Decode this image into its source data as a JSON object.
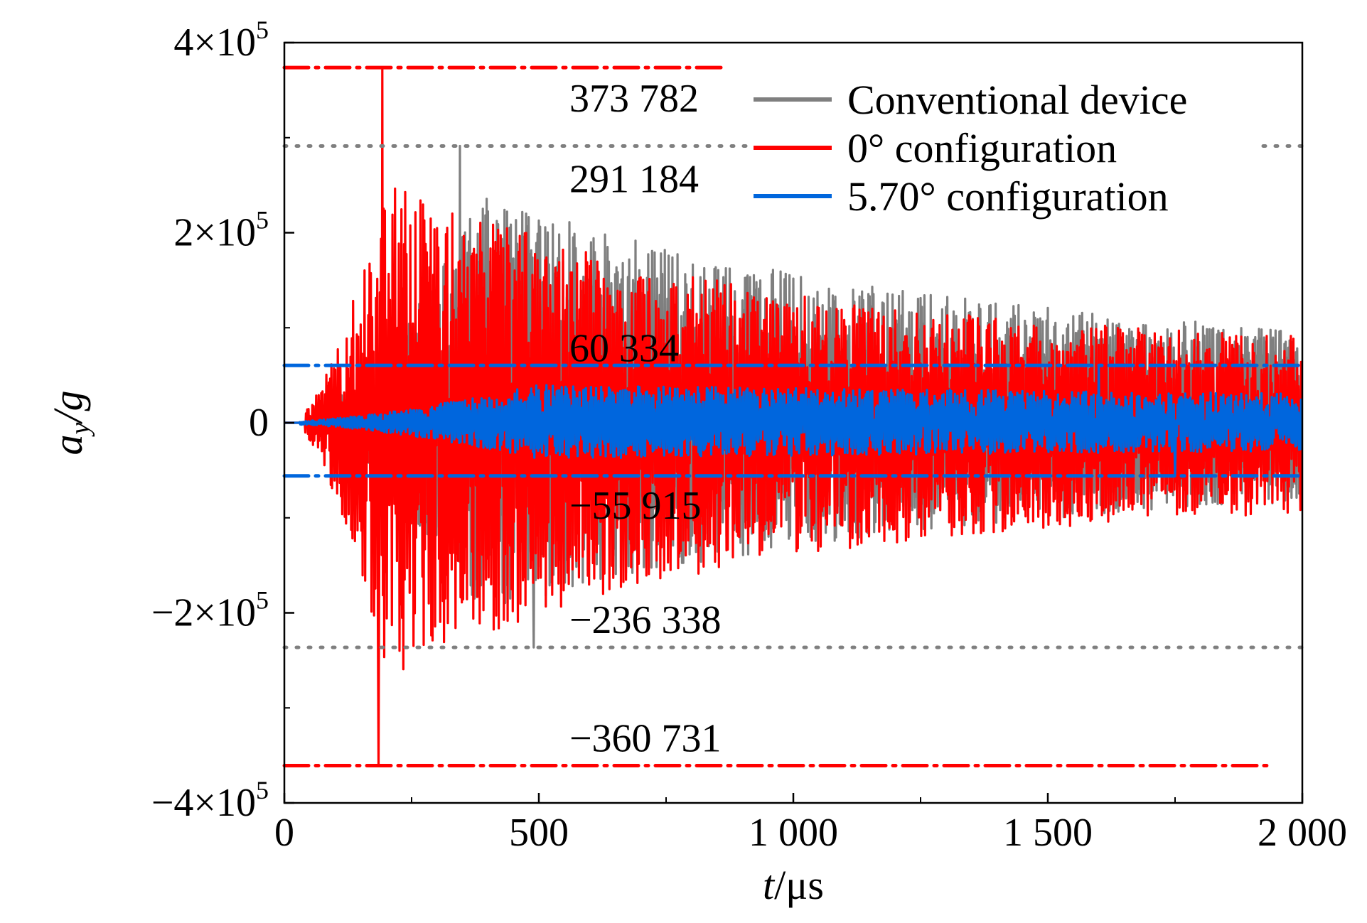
{
  "chart_data": {
    "type": "line",
    "xlabel_var": "t",
    "xlabel_unit": "/μs",
    "ylabel_var": "a",
    "ylabel_sub": "y",
    "ylabel_unit": "/g",
    "xlim": [
      0,
      2000
    ],
    "ylim": [
      -400000,
      400000
    ],
    "x_major_ticks": [
      0,
      500,
      1000,
      1500,
      2000
    ],
    "x_minor_ticks": [
      250,
      750,
      1250,
      1750
    ],
    "x_tick_labels": [
      "0",
      "500",
      "1 000",
      "1 500",
      "2 000"
    ],
    "y_major_ticks": [
      -400000,
      -200000,
      0,
      200000,
      400000
    ],
    "y_minor_ticks": [
      -300000,
      -100000,
      100000,
      300000
    ],
    "y_tick_labels": [
      {
        "base": "−4×10",
        "exp": "5"
      },
      {
        "base": "−2×10",
        "exp": "5"
      },
      {
        "base": "0",
        "exp": ""
      },
      {
        "base": "2×10",
        "exp": "5"
      },
      {
        "base": "4×10",
        "exp": "5"
      }
    ],
    "grid": false,
    "legend_position": "top-right",
    "series": [
      {
        "name": "Conventional device",
        "color": "#7f7f7f",
        "t_start": 0,
        "t_end": 2000,
        "onset": 60,
        "envelope_peak_time": 390,
        "decay_time": 900,
        "envelope_pos": 240000,
        "envelope_neg": 200000,
        "max": 291184,
        "min": -236338,
        "peak_time_max": 345,
        "peak_time_min": 490
      },
      {
        "name": "0° configuration",
        "color": "#ff0000",
        "t_start": 0,
        "t_end": 2000,
        "onset": 40,
        "envelope_peak_time": 200,
        "decay_time": 700,
        "envelope_pos": 260000,
        "envelope_neg": 270000,
        "max": 373782,
        "min": -360731,
        "peak_time_max": 193,
        "peak_time_min": 185
      },
      {
        "name": "5.70° configuration",
        "color": "#0066dd",
        "t_start": 0,
        "t_end": 2000,
        "onset": 30,
        "envelope_peak_time": 500,
        "decay_time": 4000,
        "envelope_pos": 40000,
        "envelope_neg": 38000,
        "max": 60334,
        "min": -55915,
        "peak_time_max": 1600,
        "peak_time_min": 1750
      }
    ],
    "reference_lines": [
      {
        "value": 373782,
        "color": "#ff0000",
        "style": "dashdot",
        "x_end": 860
      },
      {
        "value": 291184,
        "color": "#7f7f7f",
        "style": "dotted",
        "x_end": 2000
      },
      {
        "value": 60334,
        "color": "#0066dd",
        "style": "dashdot",
        "x_end": 2000
      },
      {
        "value": -55915,
        "color": "#0066dd",
        "style": "dashdot",
        "x_end": 2000
      },
      {
        "value": -236338,
        "color": "#7f7f7f",
        "style": "dotted",
        "x_end": 2000
      },
      {
        "value": -360731,
        "color": "#ff0000",
        "style": "dashdot",
        "x_end": 1930
      }
    ],
    "annotations": [
      {
        "text": "373 782",
        "x": 560,
        "y": 373782
      },
      {
        "text": "291 184",
        "x": 560,
        "y": 291184
      },
      {
        "text": "60 334",
        "x": 560,
        "y": 60334
      },
      {
        "text": "−55 915",
        "x": 560,
        "y": -55915
      },
      {
        "text": "−236 338",
        "x": 560,
        "y": -236338
      },
      {
        "text": "−360 731",
        "x": 560,
        "y": -360731
      }
    ]
  }
}
